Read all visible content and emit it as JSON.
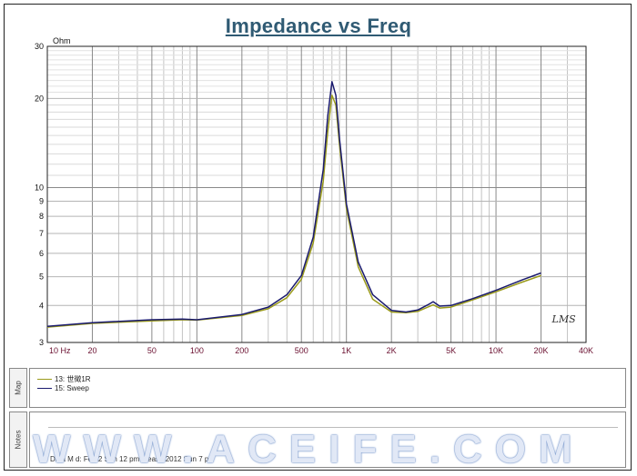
{
  "chart_data": {
    "type": "line",
    "title": "Impedance vs Freq",
    "ylabel": "Ohm",
    "xlabel": "",
    "x_scale": "log",
    "y_scale": "log",
    "xlim": [
      10,
      40000
    ],
    "ylim": [
      3,
      30
    ],
    "grid": true,
    "legend_position": "bottom panel (Map)",
    "x_tick_labels": [
      "10 Hz",
      "20",
      "50",
      "100",
      "200",
      "500",
      "1K",
      "2K",
      "5K",
      "10K",
      "20K",
      "40K"
    ],
    "x_tick_values": [
      10,
      20,
      50,
      100,
      200,
      500,
      1000,
      2000,
      5000,
      10000,
      20000,
      40000
    ],
    "y_tick_labels": [
      "3",
      "4",
      "5",
      "6",
      "7",
      "8",
      "9",
      "10",
      "20",
      "30"
    ],
    "y_tick_values": [
      3,
      4,
      5,
      6,
      7,
      8,
      9,
      10,
      20,
      30
    ],
    "series": [
      {
        "name": "13: 世徵1R",
        "color": "#9a9a1a",
        "x": [
          10,
          20,
          50,
          80,
          100,
          200,
          300,
          400,
          500,
          600,
          700,
          750,
          800,
          850,
          900,
          1000,
          1200,
          1500,
          2000,
          2500,
          3000,
          3500,
          3800,
          4200,
          5000,
          7000,
          10000,
          15000,
          20000
        ],
        "y": [
          3.38,
          3.48,
          3.55,
          3.58,
          3.57,
          3.7,
          3.9,
          4.25,
          4.9,
          6.5,
          10.5,
          15.5,
          20.5,
          19.0,
          13.8,
          8.5,
          5.4,
          4.2,
          3.8,
          3.78,
          3.82,
          3.95,
          4.02,
          3.92,
          3.95,
          4.18,
          4.45,
          4.8,
          5.05
        ]
      },
      {
        "name": "15: Sweep",
        "color": "#1a1a6e",
        "x": [
          10,
          20,
          50,
          80,
          100,
          200,
          300,
          400,
          500,
          600,
          700,
          750,
          800,
          850,
          900,
          1000,
          1200,
          1500,
          2000,
          2500,
          3000,
          3500,
          3800,
          4200,
          5000,
          7000,
          10000,
          15000,
          20000
        ],
        "y": [
          3.4,
          3.5,
          3.58,
          3.6,
          3.58,
          3.73,
          3.95,
          4.35,
          5.05,
          6.8,
          11.5,
          17.5,
          22.8,
          20.5,
          14.5,
          8.8,
          5.6,
          4.35,
          3.85,
          3.8,
          3.86,
          4.02,
          4.12,
          3.98,
          4.0,
          4.22,
          4.5,
          4.88,
          5.15
        ]
      }
    ]
  },
  "logo": {
    "text": "LMS"
  },
  "map_panel": {
    "label": "Map",
    "entries": [
      {
        "label": "13: 世徵1R",
        "color": "#9a9a1a"
      },
      {
        "label": "15: Sweep",
        "color": "#1a1a6e"
      }
    ]
  },
  "notes_panel": {
    "label": "Notes",
    "text": "Data M    d: Feb 2     Sun 12   pm                                        Measu          2012  Sun    7 p"
  },
  "watermark": {
    "text": "WWW.ACEIFE.COM"
  }
}
